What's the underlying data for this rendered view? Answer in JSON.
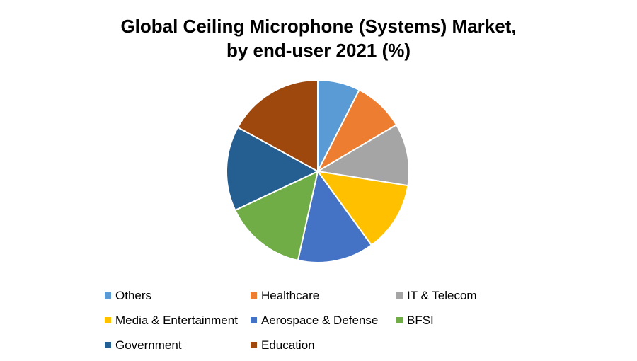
{
  "chart_data": {
    "type": "pie",
    "title_line1": "Global Ceiling Microphone (Systems) Market,",
    "title_line2": "by end-user 2021 (%)",
    "legend_position": "bottom",
    "series": [
      {
        "name": "Others",
        "value": 7.5,
        "color": "#5B9BD5"
      },
      {
        "name": "Healthcare",
        "value": 9.0,
        "color": "#ED7D31"
      },
      {
        "name": "IT & Telecom",
        "value": 11.0,
        "color": "#A5A5A5"
      },
      {
        "name": "Media & Entertainment",
        "value": 12.5,
        "color": "#FFC000"
      },
      {
        "name": "Aerospace & Defense",
        "value": 13.5,
        "color": "#4472C4"
      },
      {
        "name": "BFSI",
        "value": 14.5,
        "color": "#70AD47"
      },
      {
        "name": "Government",
        "value": 15.0,
        "color": "#255E91"
      },
      {
        "name": "Education",
        "value": 17.0,
        "color": "#9E480E"
      }
    ]
  }
}
